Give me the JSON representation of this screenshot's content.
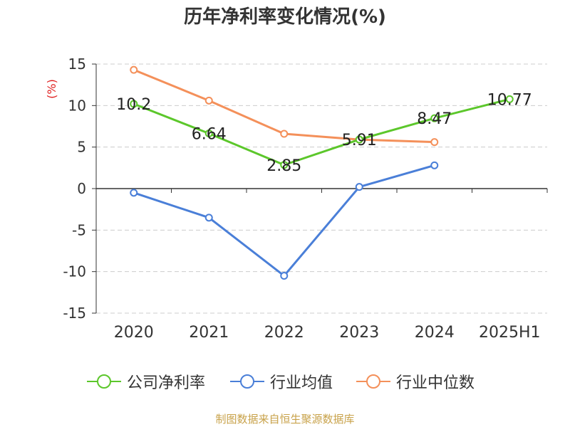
{
  "chart_data": {
    "type": "line",
    "title": "历年净利率变化情况(%)",
    "ylabel": "(%)",
    "xlabel": "",
    "categories": [
      "2020",
      "2021",
      "2022",
      "2023",
      "2024",
      "2025H1"
    ],
    "ylim": [
      -15,
      15
    ],
    "yticks": [
      15,
      10,
      5,
      0,
      -5,
      -10,
      -15
    ],
    "grid": true,
    "legend_position": "bottom",
    "series": [
      {
        "name": "公司净利率",
        "color": "#5cc72b",
        "values": [
          10.2,
          6.64,
          2.85,
          5.91,
          8.47,
          10.77
        ],
        "labels": [
          "10.2",
          "6.64",
          "2.85",
          "5.91",
          "8.47",
          "10.77"
        ]
      },
      {
        "name": "行业均值",
        "color": "#4a7fd8",
        "values": [
          -0.5,
          -3.5,
          -10.5,
          0.2,
          2.8,
          null
        ]
      },
      {
        "name": "行业中位数",
        "color": "#f4905a",
        "values": [
          14.3,
          10.6,
          6.6,
          5.9,
          5.6,
          null
        ]
      }
    ]
  },
  "source": "制图数据来自恒生聚源数据库"
}
